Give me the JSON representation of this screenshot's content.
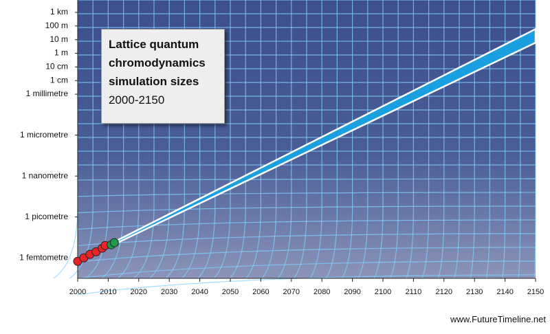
{
  "chart_data": {
    "type": "scatter",
    "title": "Lattice quantum chromodynamics simulation sizes",
    "subtitle": "2000-2150",
    "credit": "www.FutureTimeline.net",
    "log_y": true,
    "xlim": [
      2000,
      2150
    ],
    "xticks": [
      2000,
      2010,
      2020,
      2030,
      2040,
      2050,
      2060,
      2070,
      2080,
      2090,
      2100,
      2110,
      2120,
      2130,
      2140,
      2150
    ],
    "ylim": [
      3.16e-17,
      1000
    ],
    "yticks": [
      {
        "value": 1000,
        "label": "1 km"
      },
      {
        "value": 100,
        "label": "100 m"
      },
      {
        "value": 10,
        "label": "10 m"
      },
      {
        "value": 1,
        "label": "1 m"
      },
      {
        "value": 0.1,
        "label": "10 cm"
      },
      {
        "value": 0.01,
        "label": "1 cm"
      },
      {
        "value": 0.001,
        "label": "1 millimetre"
      },
      {
        "value": 1e-06,
        "label": "1 micrometre"
      },
      {
        "value": 1e-09,
        "label": "1 nanometre"
      },
      {
        "value": 1e-12,
        "label": "1 picometre"
      },
      {
        "value": 1e-15,
        "label": "1 femtometre"
      }
    ],
    "band": {
      "color": "#1a9fe0",
      "x": [
        2012,
        2150
      ],
      "upper": [
        1.5e-14,
        60
      ],
      "lower": [
        1e-14,
        6
      ]
    },
    "series": [
      {
        "color": "#e8242a",
        "x": [
          2000,
          2002,
          2004,
          2006,
          2008,
          2009
        ],
        "values": [
          5.6e-16,
          1e-15,
          1.8e-15,
          2.8e-15,
          5.1e-15,
          8.1e-15
        ]
      },
      {
        "color": "#1f9a4a",
        "x": [
          2011,
          2012
        ],
        "values": [
          9.1e-15,
          1.3e-14
        ]
      }
    ]
  }
}
